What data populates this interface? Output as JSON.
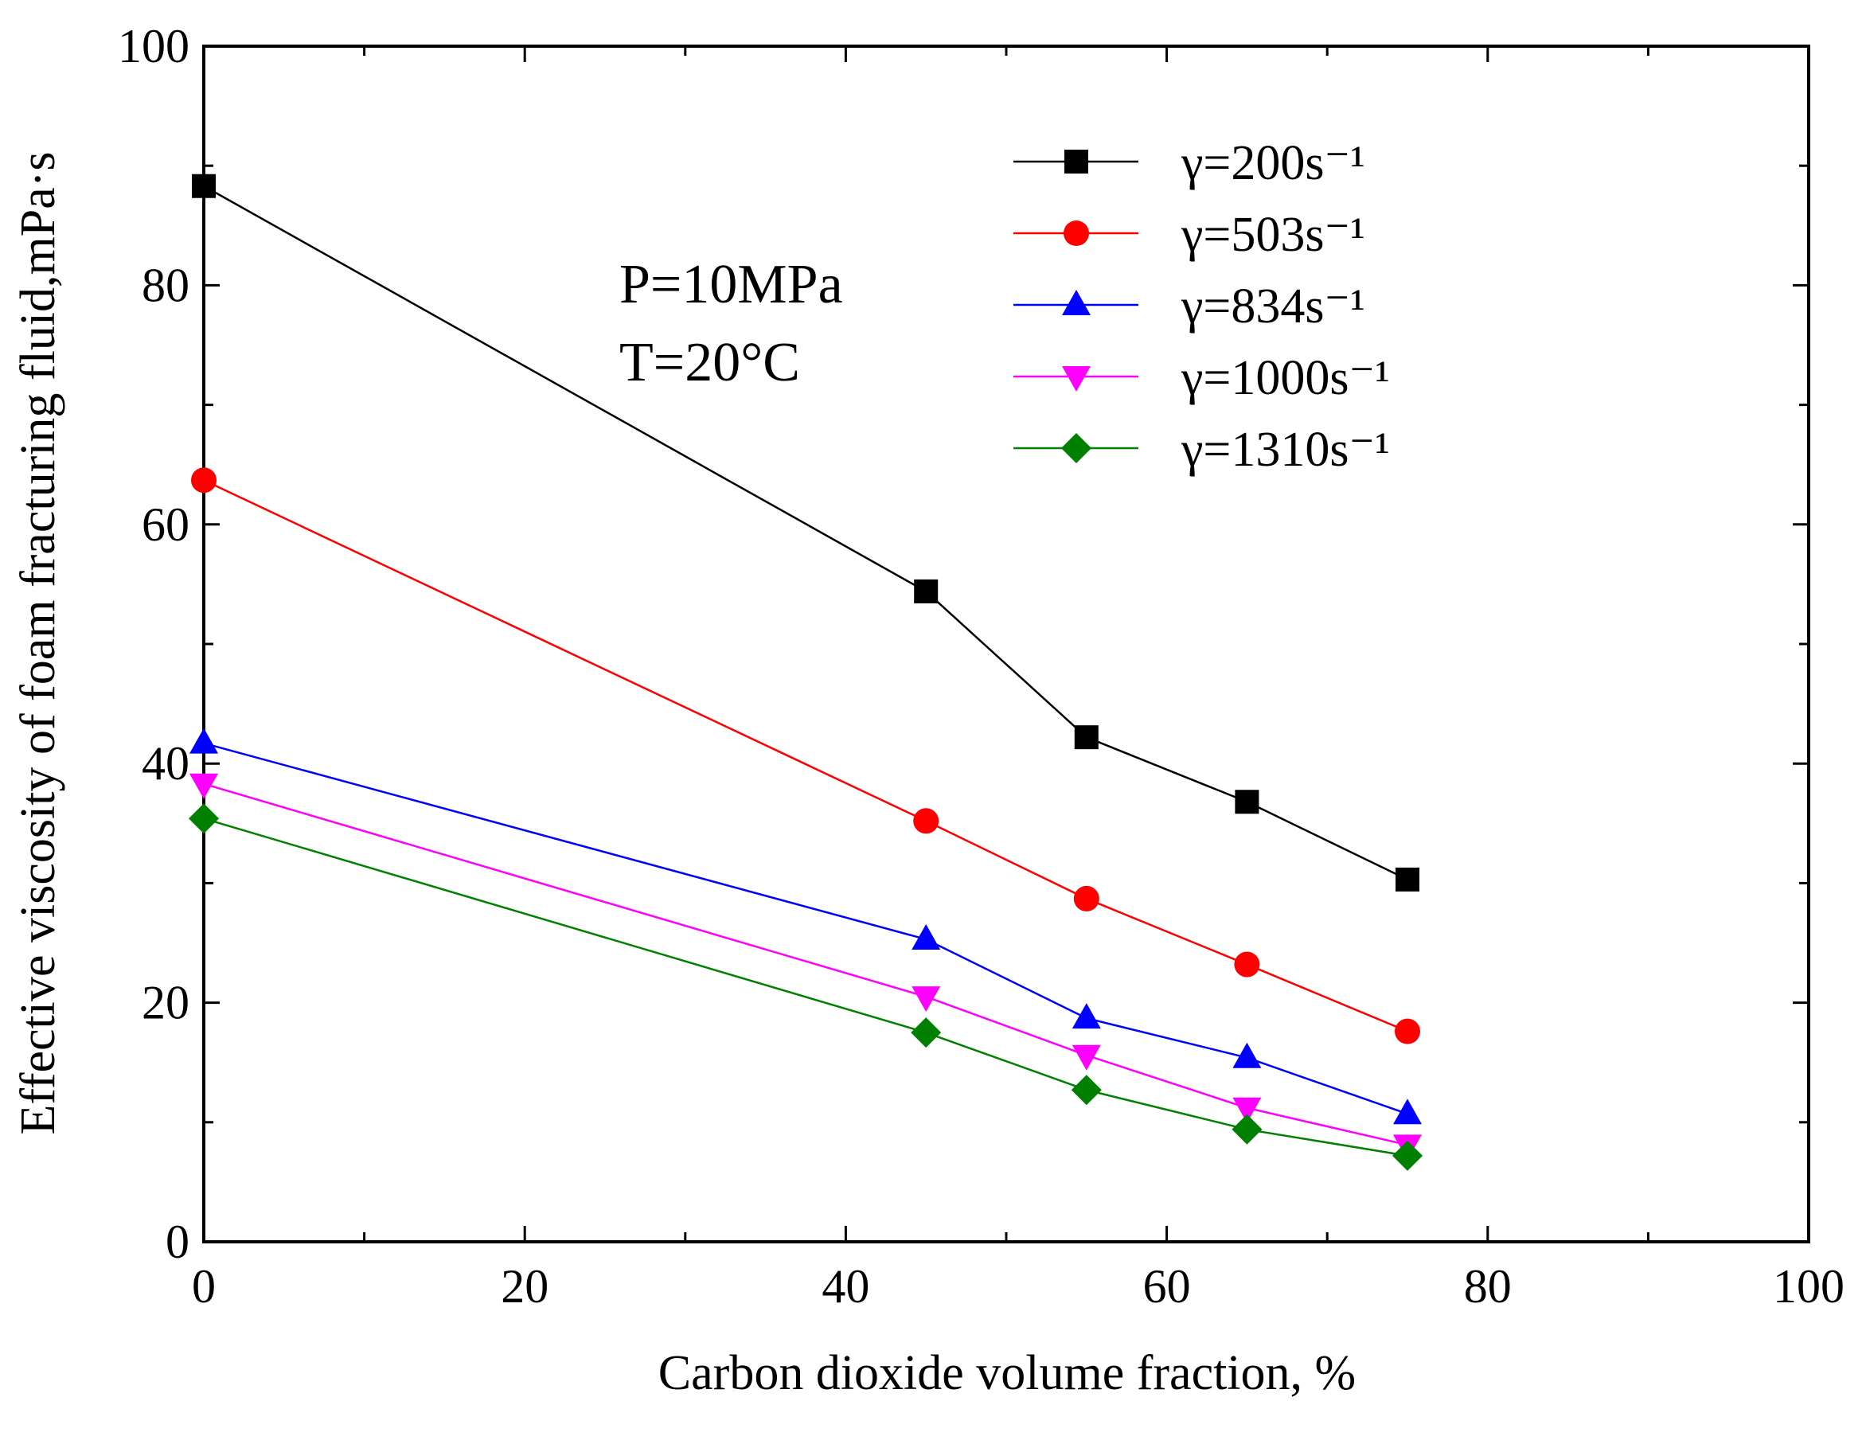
{
  "chart_data": {
    "type": "line",
    "title": "",
    "xlabel": "Carbon dioxide volume fraction, %",
    "ylabel": "Effective viscosity of foam fracturing fluid,mPa·s",
    "xlim": [
      0,
      100
    ],
    "ylim": [
      0,
      100
    ],
    "xticks": [
      "0",
      "20",
      "40",
      "60",
      "80",
      "100"
    ],
    "yticks": [
      "0",
      "20",
      "40",
      "60",
      "80",
      "100"
    ],
    "grid": false,
    "legend_position": "top-right",
    "annotations": [
      "P=10MPa",
      "T=20°C"
    ],
    "x": [
      0,
      45,
      55,
      65,
      75
    ],
    "series": [
      {
        "name": "γ=200s⁻¹",
        "marker": "square",
        "color": "#000000",
        "values": [
          88.3,
          54.4,
          42.2,
          36.8,
          30.3
        ]
      },
      {
        "name": "γ=503s⁻¹",
        "marker": "circle",
        "color": "#ff0000",
        "values": [
          63.7,
          35.2,
          28.7,
          23.2,
          17.6
        ]
      },
      {
        "name": "γ=834s⁻¹",
        "marker": "triangle-up",
        "color": "#0000ff",
        "values": [
          41.7,
          25.3,
          18.7,
          15.4,
          10.7
        ]
      },
      {
        "name": "γ=1000s⁻¹",
        "marker": "triangle-down",
        "color": "#ff00ff",
        "values": [
          38.3,
          20.5,
          15.6,
          11.2,
          8.1
        ]
      },
      {
        "name": "γ=1310s⁻¹",
        "marker": "diamond",
        "color": "#008000",
        "values": [
          35.4,
          17.5,
          12.7,
          9.4,
          7.2
        ]
      }
    ]
  }
}
